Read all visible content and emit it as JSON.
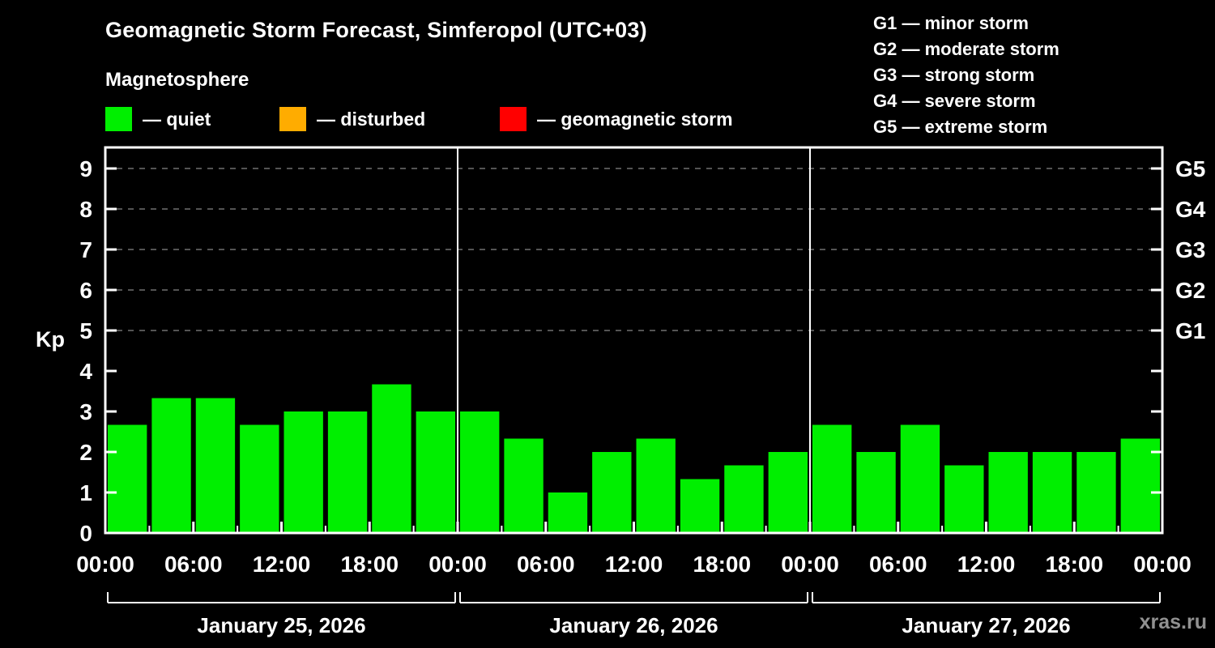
{
  "title": "Geomagnetic Storm Forecast, Simferopol (UTC+03)",
  "subtitle": "Magnetosphere",
  "legend": {
    "quiet": {
      "label": "— quiet",
      "color": "#00ef00"
    },
    "disturbed": {
      "label": "— disturbed",
      "color": "#ffac00"
    },
    "storm": {
      "label": "— geomagnetic storm",
      "color": "#ff0000"
    }
  },
  "g_scale": [
    {
      "code": "G1",
      "label": "G1 — minor storm",
      "kp": 5
    },
    {
      "code": "G2",
      "label": "G2 — moderate storm",
      "kp": 6
    },
    {
      "code": "G3",
      "label": "G3 — strong storm",
      "kp": 7
    },
    {
      "code": "G4",
      "label": "G4 — severe storm",
      "kp": 8
    },
    {
      "code": "G5",
      "label": "G5 — extreme storm",
      "kp": 9
    }
  ],
  "watermark": "xras.ru",
  "chart_data": {
    "type": "bar",
    "title": "Geomagnetic Storm Forecast, Simferopol (UTC+03)",
    "ylabel": "Kp",
    "ylim": [
      0,
      9.5
    ],
    "yticks": [
      0,
      1,
      2,
      3,
      4,
      5,
      6,
      7,
      8,
      9
    ],
    "grid_dashed_levels": [
      5,
      6,
      7,
      8,
      9
    ],
    "bar_interval_hours": 3,
    "x_tick_labels": [
      "00:00",
      "06:00",
      "12:00",
      "18:00",
      "00:00",
      "06:00",
      "12:00",
      "18:00",
      "00:00",
      "06:00",
      "12:00",
      "18:00",
      "00:00"
    ],
    "color_thresholds": {
      "disturbed_min_kp": 4,
      "storm_min_kp": 5
    },
    "days": [
      {
        "date": "January 25, 2026",
        "values": [
          2.67,
          3.33,
          3.33,
          2.67,
          3.0,
          3.0,
          3.67,
          3.0
        ]
      },
      {
        "date": "January 26, 2026",
        "values": [
          3.0,
          2.33,
          1.0,
          2.0,
          2.33,
          1.33,
          1.67,
          2.0
        ]
      },
      {
        "date": "January 27, 2026",
        "values": [
          2.67,
          2.0,
          2.67,
          1.67,
          2.0,
          2.0,
          2.0,
          2.33
        ]
      }
    ]
  }
}
